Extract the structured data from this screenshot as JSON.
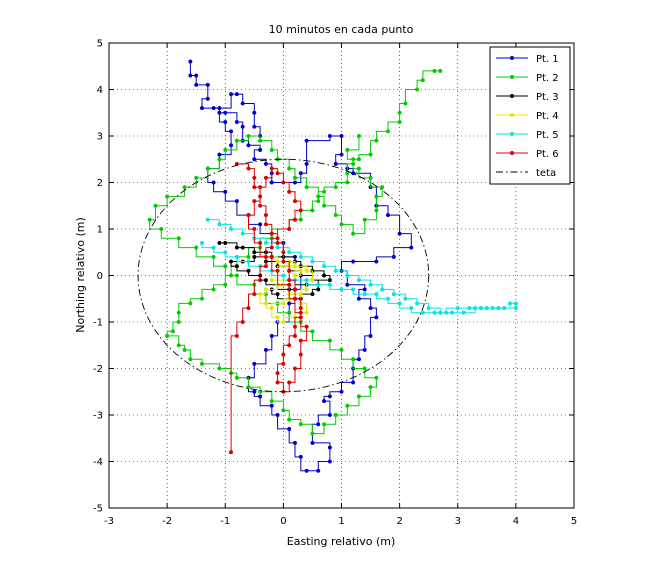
{
  "chart_data": {
    "type": "line",
    "title": "10 minutos en cada punto",
    "xlabel": "Easting relativo (m)",
    "ylabel": "Northing relativo (m)",
    "xlim": [
      -3,
      5
    ],
    "ylim": [
      -5,
      5
    ],
    "xticks": [
      -3,
      -2,
      -1,
      0,
      1,
      2,
      3,
      4,
      5
    ],
    "yticks": [
      -5,
      -4,
      -3,
      -2,
      -1,
      0,
      1,
      2,
      3,
      4,
      5
    ],
    "grid": true,
    "legend_position": "top-right",
    "series": [
      {
        "name": "Pt. 1",
        "color": "#0000cc",
        "marker": "dot",
        "x": [
          -1.6,
          -1.6,
          -1.5,
          -1.5,
          -1.3,
          -1.3,
          -1.4,
          -1.2,
          -1.1,
          -1.0,
          -0.8,
          -0.7,
          -0.7,
          -0.6,
          -0.4,
          -0.5,
          -0.3,
          -0.2,
          -0.2,
          0.2,
          0.3,
          0.4,
          0.4,
          0.8,
          1.0,
          1.0,
          0.9,
          1.1,
          1.2,
          1.5,
          1.6,
          1.8,
          2.0,
          2.2,
          1.9,
          1.6,
          1.2,
          1.0,
          1.1,
          1.4,
          1.3,
          1.5,
          1.6,
          1.5,
          1.4,
          1.3,
          1.2,
          1.2,
          1.0,
          0.8,
          0.7,
          0.8,
          0.6,
          0.5,
          0.8,
          0.8,
          0.6,
          0.4,
          0.3,
          0.2,
          0.1,
          -0.1,
          -0.2,
          -0.4,
          -0.5,
          -0.6,
          -0.5,
          -0.3,
          -0.2,
          -0.1,
          0.1,
          0.2,
          0.3,
          0.2,
          0.0,
          -0.2,
          -0.4,
          -0.6,
          -0.8,
          -1.0,
          -1.2,
          -1.3,
          -1.1,
          -0.9,
          -0.9,
          -1.0,
          -1.1,
          -0.9,
          -0.8,
          -0.7,
          -0.5,
          -0.5,
          -0.4
        ],
        "y": [
          4.6,
          4.3,
          4.3,
          4.1,
          4.1,
          3.8,
          3.6,
          3.6,
          3.5,
          3.5,
          3.3,
          3.2,
          2.9,
          2.8,
          2.7,
          2.5,
          2.4,
          2.2,
          2.0,
          2.0,
          2.2,
          2.4,
          2.9,
          3.0,
          3.0,
          2.6,
          2.4,
          2.3,
          2.2,
          1.9,
          1.5,
          1.3,
          0.9,
          0.6,
          0.4,
          0.3,
          0.3,
          0.1,
          -0.2,
          -0.3,
          -0.5,
          -0.7,
          -0.9,
          -1.3,
          -1.6,
          -1.8,
          -2.0,
          -2.3,
          -2.5,
          -2.6,
          -2.7,
          -3.0,
          -3.2,
          -3.6,
          -3.7,
          -4.0,
          -4.2,
          -4.2,
          -3.9,
          -3.6,
          -3.3,
          -3.0,
          -2.8,
          -2.6,
          -2.5,
          -2.2,
          -1.9,
          -1.6,
          -1.3,
          -1.0,
          -0.6,
          -0.3,
          0.1,
          0.4,
          0.7,
          0.9,
          1.1,
          1.3,
          1.6,
          1.8,
          2.0,
          2.3,
          2.6,
          2.8,
          3.1,
          3.3,
          3.6,
          3.9,
          3.9,
          3.7,
          3.5,
          3.2,
          3.0
        ]
      },
      {
        "name": "Pt. 2",
        "color": "#00cc00",
        "marker": "dot",
        "x": [
          2.7,
          2.6,
          2.4,
          2.3,
          2.1,
          2.0,
          2.0,
          1.8,
          1.6,
          1.5,
          1.3,
          1.2,
          1.1,
          1.1,
          0.9,
          0.7,
          0.6,
          0.5,
          0.3,
          0.1,
          -0.2,
          -0.4,
          -0.6,
          -0.8,
          -0.9,
          -1.0,
          -1.2,
          -1.4,
          -1.6,
          -1.8,
          -1.8,
          -1.9,
          -2.0,
          -1.8,
          -1.7,
          -1.6,
          -1.4,
          -1.1,
          -0.9,
          -0.8,
          -0.6,
          -0.4,
          -0.2,
          0.0,
          0.1,
          0.3,
          0.5,
          0.7,
          0.9,
          1.1,
          1.3,
          1.5,
          1.6,
          1.4,
          1.2,
          1.0,
          0.8,
          0.5,
          0.3,
          0.1,
          -0.1,
          -0.3,
          -0.5,
          -0.8,
          -1.0,
          -1.2,
          -1.5,
          -1.8,
          -2.1,
          -2.3,
          -2.2,
          -2.0,
          -1.7,
          -1.5,
          -1.3,
          -1.1,
          -1.0,
          -0.8,
          -0.6,
          -0.4,
          -0.2,
          -0.1,
          0.1,
          0.2,
          0.4,
          0.6,
          0.7,
          0.9,
          1.0,
          1.2,
          1.4,
          1.6,
          1.6,
          1.7,
          1.5,
          1.3,
          1.2,
          1.1,
          1.3
        ],
        "y": [
          4.4,
          4.4,
          4.2,
          4.0,
          3.7,
          3.5,
          3.3,
          3.1,
          2.9,
          2.6,
          2.5,
          2.4,
          2.2,
          2.0,
          1.9,
          1.8,
          1.6,
          1.4,
          1.2,
          1.0,
          0.8,
          0.6,
          0.4,
          0.2,
          0.0,
          -0.2,
          -0.3,
          -0.5,
          -0.6,
          -0.8,
          -1.0,
          -1.2,
          -1.3,
          -1.5,
          -1.6,
          -1.8,
          -1.9,
          -2.0,
          -2.1,
          -2.2,
          -2.4,
          -2.5,
          -2.7,
          -2.9,
          -3.1,
          -3.2,
          -3.4,
          -3.2,
          -3.0,
          -2.8,
          -2.6,
          -2.4,
          -2.2,
          -2.0,
          -1.8,
          -1.6,
          -1.4,
          -1.2,
          -1.0,
          -0.8,
          -0.6,
          -0.4,
          -0.2,
          0.0,
          0.2,
          0.4,
          0.6,
          0.8,
          1.0,
          1.2,
          1.5,
          1.7,
          1.9,
          2.1,
          2.3,
          2.5,
          2.7,
          2.9,
          3.0,
          2.9,
          2.7,
          2.5,
          2.3,
          2.1,
          1.9,
          1.7,
          1.5,
          1.3,
          1.1,
          0.9,
          1.2,
          1.4,
          1.7,
          1.9,
          2.1,
          2.3,
          2.5,
          2.7,
          3.0
        ]
      },
      {
        "name": "Pt. 3",
        "color": "#000000",
        "marker": "dot",
        "x": [
          -1.1,
          -1.0,
          -0.8,
          -0.7,
          -0.5,
          -0.3,
          -0.2,
          0.0,
          0.2,
          0.3,
          0.5,
          0.7,
          0.8,
          0.6,
          0.4,
          0.2,
          0.1,
          -0.1,
          -0.3,
          -0.4,
          -0.6,
          -0.8,
          -0.9,
          -0.7,
          -0.5,
          -0.3,
          -0.1,
          0.1,
          0.3,
          0.5,
          0.6,
          0.5,
          0.3,
          0.1,
          -0.1,
          -0.2
        ],
        "y": [
          0.7,
          0.7,
          0.6,
          0.6,
          0.5,
          0.5,
          0.4,
          0.4,
          0.3,
          0.2,
          0.1,
          0.0,
          -0.1,
          -0.2,
          -0.2,
          -0.3,
          -0.3,
          -0.2,
          -0.1,
          0.0,
          0.1,
          0.2,
          0.3,
          0.3,
          0.4,
          0.3,
          0.2,
          0.1,
          0.0,
          -0.1,
          -0.3,
          -0.4,
          -0.5,
          -0.5,
          -0.4,
          -0.3
        ]
      },
      {
        "name": "Pt. 4",
        "color": "#e6e600",
        "marker": "dot",
        "x": [
          -0.3,
          -0.1,
          0.1,
          0.2,
          0.4,
          0.5,
          0.4,
          0.3,
          0.1,
          0.0,
          -0.2,
          -0.3,
          -0.4,
          -0.3,
          -0.1,
          0.1,
          0.2,
          0.3,
          0.2,
          0.1,
          -0.1,
          -0.2,
          0.0,
          0.1,
          0.3,
          0.4,
          0.2,
          0.0,
          -0.1,
          -0.2
        ],
        "y": [
          0.4,
          0.3,
          0.3,
          0.2,
          0.1,
          -0.1,
          -0.3,
          -0.4,
          -0.5,
          -0.6,
          -0.7,
          -0.6,
          -0.4,
          -0.3,
          -0.2,
          -0.1,
          0.0,
          0.1,
          0.2,
          0.2,
          0.1,
          -0.1,
          -0.2,
          -0.4,
          -0.6,
          -0.8,
          -0.9,
          -1.0,
          -0.9,
          -0.7
        ]
      },
      {
        "name": "Pt. 5",
        "color": "#00e6e6",
        "marker": "dot",
        "x": [
          -1.3,
          -1.1,
          -0.9,
          -0.7,
          -0.5,
          -0.3,
          -0.1,
          0.1,
          0.3,
          0.5,
          0.7,
          0.9,
          1.1,
          1.3,
          1.5,
          1.7,
          1.9,
          2.1,
          2.3,
          2.5,
          2.7,
          2.9,
          3.1,
          3.3,
          3.5,
          3.7,
          3.9,
          4.0,
          4.0,
          3.8,
          3.6,
          3.4,
          3.2,
          3.0,
          2.8,
          2.6,
          2.4,
          2.2,
          2.0,
          1.8,
          1.6,
          1.4,
          1.2,
          1.0,
          0.8,
          0.6,
          0.4,
          0.2,
          0.0,
          -0.2,
          -0.4,
          -0.6,
          -0.8,
          -1.0,
          -1.2,
          -1.4
        ],
        "y": [
          1.2,
          1.1,
          1.0,
          0.9,
          0.8,
          0.7,
          0.6,
          0.5,
          0.4,
          0.3,
          0.2,
          0.1,
          0.0,
          -0.1,
          -0.2,
          -0.3,
          -0.4,
          -0.5,
          -0.6,
          -0.7,
          -0.8,
          -0.8,
          -0.8,
          -0.7,
          -0.7,
          -0.7,
          -0.6,
          -0.6,
          -0.7,
          -0.7,
          -0.7,
          -0.7,
          -0.7,
          -0.7,
          -0.8,
          -0.8,
          -0.8,
          -0.7,
          -0.6,
          -0.5,
          -0.4,
          -0.4,
          -0.3,
          -0.3,
          -0.2,
          -0.2,
          -0.1,
          -0.1,
          0.0,
          0.1,
          0.2,
          0.3,
          0.4,
          0.5,
          0.6,
          0.7
        ]
      },
      {
        "name": "Pt. 6",
        "color": "#dd0000",
        "marker": "dot",
        "x": [
          -0.8,
          -0.6,
          -0.5,
          -0.5,
          -0.4,
          -0.4,
          -0.3,
          -0.3,
          -0.2,
          -0.1,
          0.0,
          0.0,
          0.1,
          0.1,
          0.2,
          0.2,
          0.3,
          0.3,
          0.2,
          0.2,
          0.1,
          0.0,
          0.0,
          -0.1,
          -0.1,
          0.0,
          0.1,
          0.2,
          0.3,
          0.3,
          0.4,
          0.3,
          0.2,
          0.1,
          -0.1,
          -0.2,
          -0.4,
          -0.5,
          -0.6,
          -0.5,
          -0.4,
          -0.3,
          -0.2,
          -0.1,
          0.0,
          0.1,
          0.2,
          0.3,
          0.2,
          0.1,
          -0.1,
          -0.2,
          -0.3,
          -0.3,
          -0.4,
          -0.5,
          -0.6,
          -0.7,
          -0.8,
          -0.9
        ],
        "y": [
          2.4,
          2.3,
          2.1,
          1.9,
          1.7,
          1.5,
          1.3,
          1.1,
          0.9,
          0.7,
          0.5,
          0.3,
          0.1,
          -0.1,
          -0.3,
          -0.5,
          -0.7,
          -0.9,
          -1.1,
          -1.3,
          -1.5,
          -1.7,
          -1.9,
          -2.1,
          -2.3,
          -2.5,
          -2.3,
          -2.0,
          -1.7,
          -1.4,
          -1.1,
          -0.8,
          -0.5,
          -0.2,
          0.1,
          0.4,
          0.7,
          1.0,
          1.3,
          1.6,
          1.9,
          2.1,
          2.3,
          2.2,
          2.0,
          1.8,
          1.6,
          1.4,
          1.2,
          1.0,
          0.8,
          0.6,
          0.4,
          0.2,
          -0.1,
          -0.4,
          -0.7,
          -1.0,
          -1.3,
          -3.8
        ]
      },
      {
        "name": "teta",
        "color": "#000000",
        "style": "dash-dot",
        "shape": "circle",
        "center": [
          0,
          0
        ],
        "radius": 2.5
      }
    ]
  }
}
